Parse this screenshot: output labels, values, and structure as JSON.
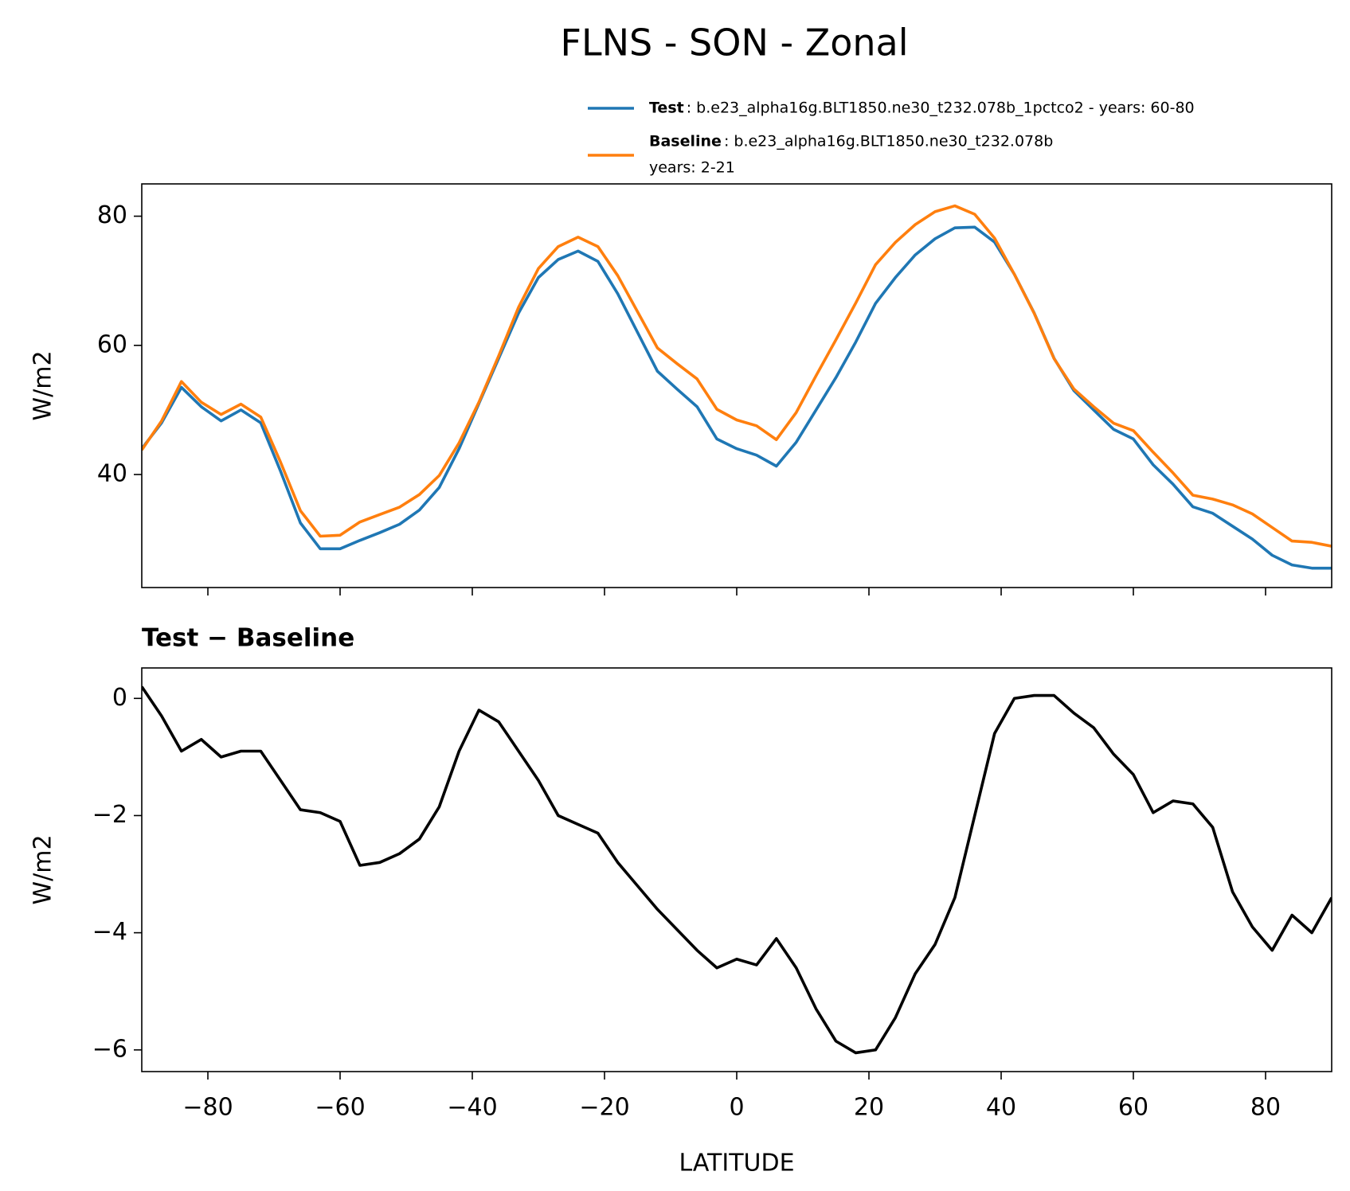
{
  "chart_data": [
    {
      "type": "line",
      "title": "FLNS - SON - Zonal",
      "ylabel": "W/m2",
      "x": [
        -90,
        -87,
        -84,
        -81,
        -78,
        -75,
        -72,
        -69,
        -66,
        -63,
        -60,
        -57,
        -54,
        -51,
        -48,
        -45,
        -42,
        -39,
        -36,
        -33,
        -30,
        -27,
        -24,
        -21,
        -18,
        -15,
        -12,
        -9,
        -6,
        -3,
        0,
        3,
        6,
        9,
        12,
        15,
        18,
        21,
        24,
        27,
        30,
        33,
        36,
        39,
        42,
        45,
        48,
        51,
        54,
        57,
        60,
        63,
        66,
        69,
        72,
        75,
        78,
        81,
        84,
        87,
        90
      ],
      "series": [
        {
          "name": "Test",
          "label": ": b.e23_alpha16g.BLT1850.ne30_t232.078b_1pctco2 - years: 60-80",
          "color": "#1f77b4",
          "values": [
            44,
            48,
            53.5,
            50.5,
            48.3,
            50,
            48,
            40.5,
            32.5,
            28.5,
            28.5,
            29.8,
            31,
            32.3,
            34.5,
            38,
            44,
            51,
            58,
            65,
            70.5,
            73.3,
            74.6,
            73,
            68,
            62,
            56,
            53.2,
            50.5,
            45.5,
            44,
            43,
            41.3,
            45,
            50,
            55,
            60.5,
            66.5,
            70.5,
            74,
            76.5,
            78.2,
            78.3,
            76,
            71,
            65,
            58,
            53,
            50,
            47,
            45.5,
            41.5,
            38.5,
            35,
            34,
            32,
            30,
            27.5,
            26,
            25.5,
            25.5
          ]
        },
        {
          "name": "Baseline",
          "label_lines": [
            ": b.e23_alpha16g.BLT1850.ne30_t232.078b",
            "years: 2-21"
          ],
          "color": "#ff7f0e",
          "values": [
            43.8,
            48.3,
            54.4,
            51.2,
            49.3,
            50.9,
            48.9,
            41.9,
            34.4,
            30.45,
            30.6,
            32.65,
            33.8,
            34.95,
            36.9,
            39.85,
            44.9,
            51.2,
            58.4,
            65.9,
            71.9,
            75.3,
            76.75,
            75.3,
            70.8,
            65.2,
            59.6,
            57.15,
            54.8,
            50.1,
            48.45,
            47.55,
            45.4,
            49.6,
            55.3,
            60.85,
            66.55,
            72.5,
            75.95,
            78.7,
            80.7,
            81.6,
            80.3,
            76.6,
            71,
            64.95,
            57.95,
            53.25,
            50.5,
            47.95,
            46.8,
            43.45,
            40.25,
            36.8,
            36.2,
            35.3,
            33.9,
            31.8,
            29.7,
            29.5,
            28.9
          ]
        }
      ],
      "xlim": [
        -90,
        90
      ],
      "xticks": [
        -80,
        -60,
        -40,
        -20,
        0,
        20,
        40,
        60,
        80
      ],
      "ylim": [
        22.5,
        85
      ],
      "yticks": [
        40,
        60,
        80
      ],
      "legend": "upper right"
    },
    {
      "type": "line",
      "title": "Test − Baseline",
      "ylabel": "W/m2",
      "xlabel": "LATITUDE",
      "x": [
        -90,
        -87,
        -84,
        -81,
        -78,
        -75,
        -72,
        -69,
        -66,
        -63,
        -60,
        -57,
        -54,
        -51,
        -48,
        -45,
        -42,
        -39,
        -36,
        -33,
        -30,
        -27,
        -24,
        -21,
        -18,
        -15,
        -12,
        -9,
        -6,
        -3,
        0,
        3,
        6,
        9,
        12,
        15,
        18,
        21,
        24,
        27,
        30,
        33,
        36,
        39,
        42,
        45,
        48,
        51,
        54,
        57,
        60,
        63,
        66,
        69,
        72,
        75,
        78,
        81,
        84,
        87,
        90
      ],
      "series": [
        {
          "color": "#000000",
          "values": [
            0.2,
            -0.3,
            -0.9,
            -0.7,
            -1.0,
            -0.9,
            -0.9,
            -1.4,
            -1.9,
            -1.95,
            -2.1,
            -2.85,
            -2.8,
            -2.65,
            -2.4,
            -1.85,
            -0.9,
            -0.2,
            -0.4,
            -0.9,
            -1.4,
            -2.0,
            -2.15,
            -2.3,
            -2.8,
            -3.2,
            -3.6,
            -3.95,
            -4.3,
            -4.6,
            -4.45,
            -4.55,
            -4.1,
            -4.6,
            -5.3,
            -5.85,
            -6.05,
            -6.0,
            -5.45,
            -4.7,
            -4.2,
            -3.4,
            -2.0,
            -0.6,
            0.0,
            0.05,
            0.05,
            -0.25,
            -0.5,
            -0.95,
            -1.3,
            -1.95,
            -1.75,
            -1.8,
            -2.2,
            -3.3,
            -3.9,
            -4.3,
            -3.7,
            -4.0,
            -3.4
          ]
        }
      ],
      "xlim": [
        -90,
        90
      ],
      "xticks": [
        {
          "value": -80,
          "label": "−80"
        },
        {
          "value": -60,
          "label": "−60"
        },
        {
          "value": -40,
          "label": "−40"
        },
        {
          "value": -20,
          "label": "−20"
        },
        0,
        20,
        40,
        60,
        80
      ],
      "ylim": [
        -6.37,
        0.52
      ],
      "yticks": [
        {
          "value": -6,
          "label": "−6"
        },
        {
          "value": -4,
          "label": "−4"
        },
        {
          "value": -2,
          "label": "−2"
        },
        0
      ]
    }
  ]
}
